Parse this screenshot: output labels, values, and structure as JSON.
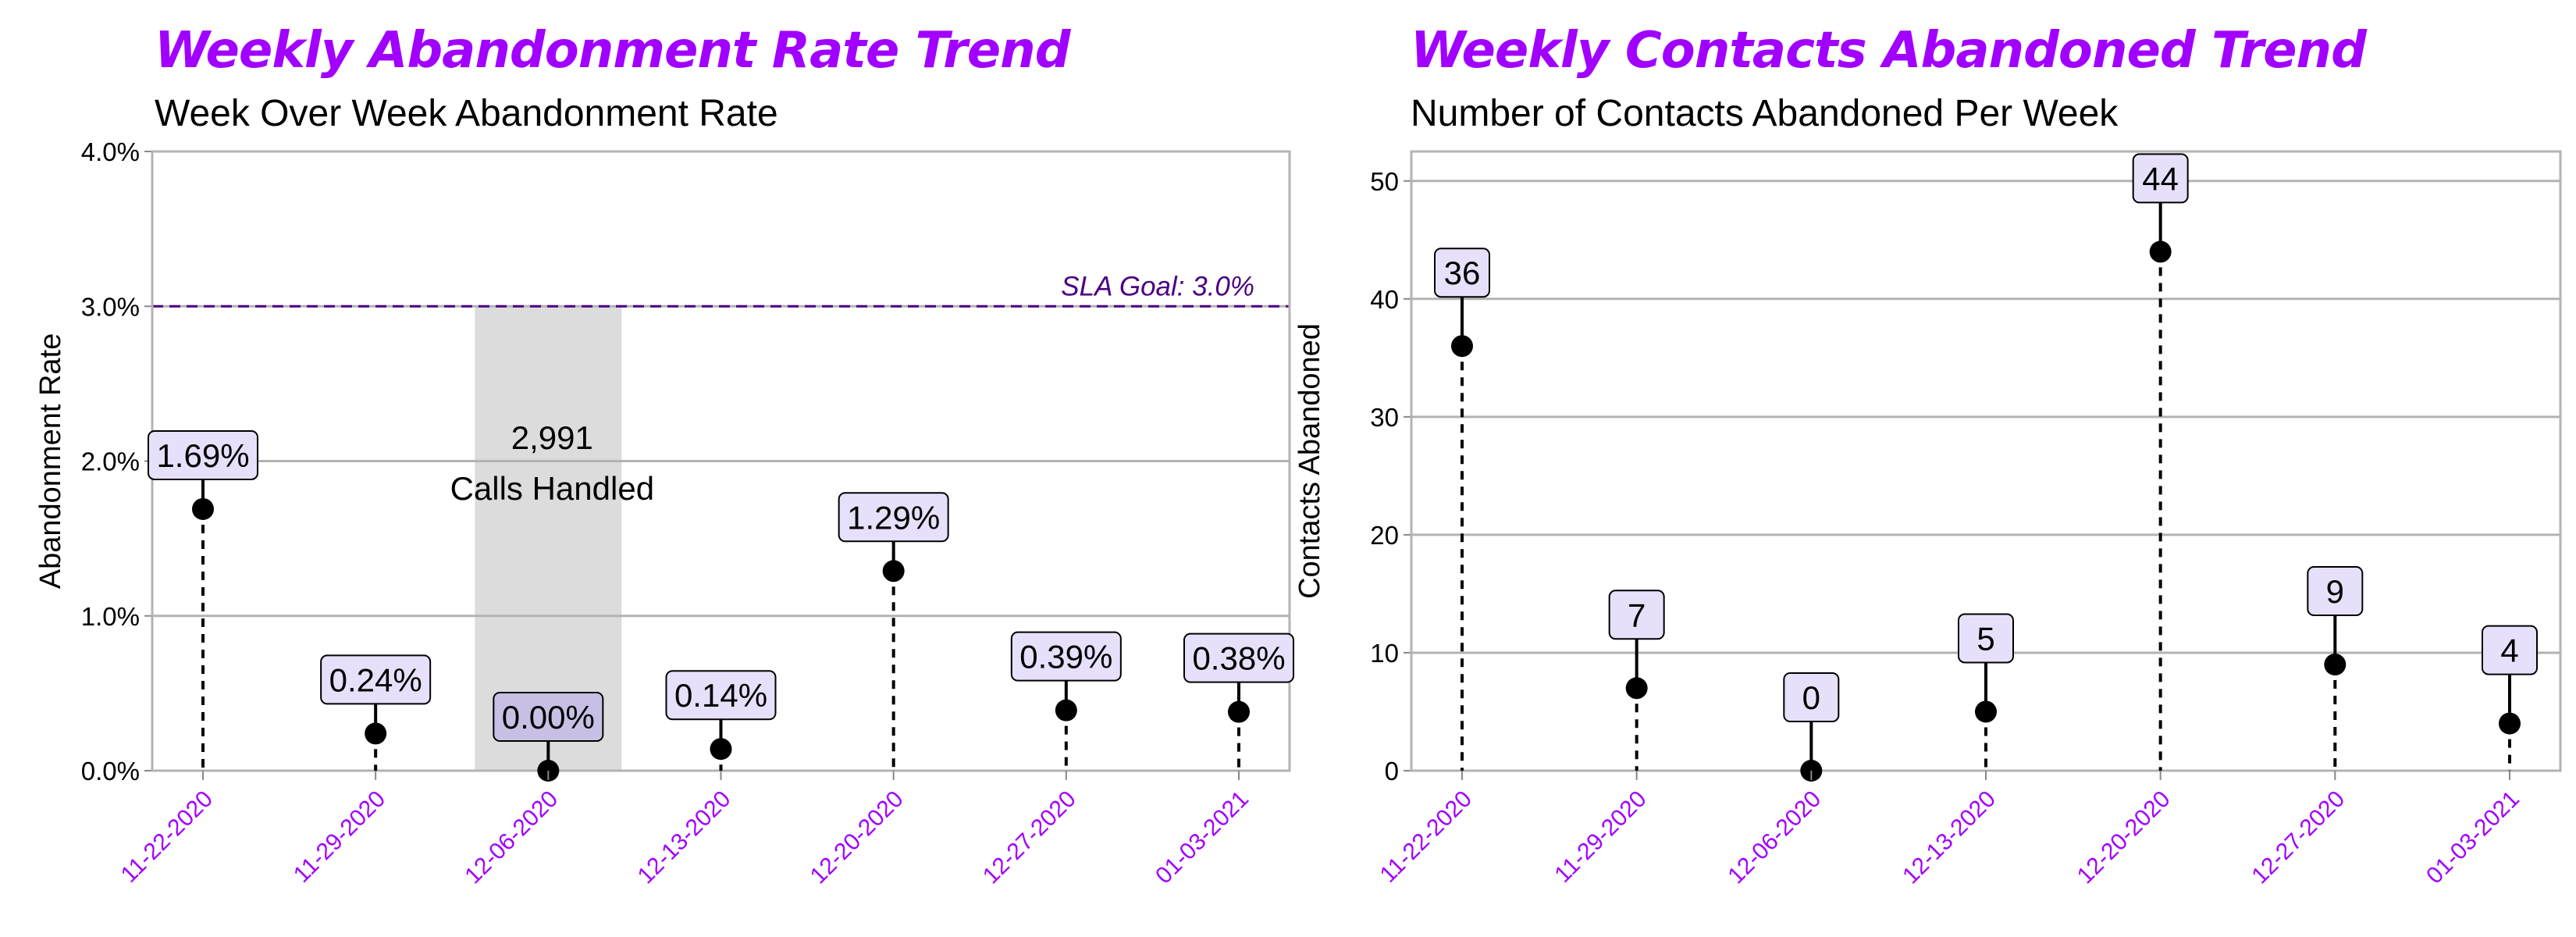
{
  "charts_header": [
    {
      "title": "Weekly Abandonment Rate Trend",
      "subtitle": "Week Over Week Abandonment Rate"
    },
    {
      "title": "Weekly Contacts Abandoned Trend",
      "subtitle": "Number of Contacts Abandoned Per Week"
    }
  ],
  "chart_data": [
    {
      "type": "scatter",
      "title": "Weekly Abandonment Rate Trend",
      "subtitle": "Week Over Week Abandonment Rate",
      "xlabel": "",
      "ylabel": "Abandonment Rate",
      "categories": [
        "11-22-2020",
        "11-29-2020",
        "12-06-2020",
        "12-13-2020",
        "12-20-2020",
        "12-27-2020",
        "01-03-2021"
      ],
      "values": [
        1.69,
        0.24,
        0.0,
        0.14,
        1.29,
        0.39,
        0.38
      ],
      "value_labels": [
        "1.69%",
        "0.24%",
        "0.00%",
        "0.14%",
        "1.29%",
        "0.39%",
        "0.38%"
      ],
      "ylim": [
        0,
        4
      ],
      "yticks": [
        0,
        1,
        2,
        3,
        4
      ],
      "ytick_labels": [
        "0.0%",
        "1.0%",
        "2.0%",
        "3.0%",
        "4.0%"
      ],
      "reference_line": {
        "value": 3.0,
        "label": "SLA Goal:  3.0%",
        "color": "#4b0082"
      },
      "highlight": {
        "category": "12-06-2020",
        "line1": "2,991",
        "line2": "Calls Handled"
      },
      "grid": true,
      "colors": {
        "marker": "#000000",
        "label_fill": "#e6e0fa",
        "highlight_fill": "#c8c0e4",
        "band": "#dcdcdc",
        "tick_label": "#a100ff"
      }
    },
    {
      "type": "scatter",
      "title": "Weekly Contacts Abandoned Trend",
      "subtitle": "Number of Contacts Abandoned Per Week",
      "xlabel": "",
      "ylabel": "Contacts Abandoned",
      "categories": [
        "11-22-2020",
        "11-29-2020",
        "12-06-2020",
        "12-13-2020",
        "12-20-2020",
        "12-27-2020",
        "01-03-2021"
      ],
      "values": [
        36,
        7,
        0,
        5,
        44,
        9,
        4
      ],
      "value_labels": [
        "36",
        "7",
        "0",
        "5",
        "44",
        "9",
        "4"
      ],
      "ylim": [
        0,
        52.5
      ],
      "yticks": [
        0,
        10,
        20,
        30,
        40,
        50
      ],
      "ytick_labels": [
        "0",
        "10",
        "20",
        "30",
        "40",
        "50"
      ],
      "grid": true,
      "colors": {
        "marker": "#000000",
        "label_fill": "#e6e0fa",
        "tick_label": "#a100ff"
      }
    }
  ]
}
